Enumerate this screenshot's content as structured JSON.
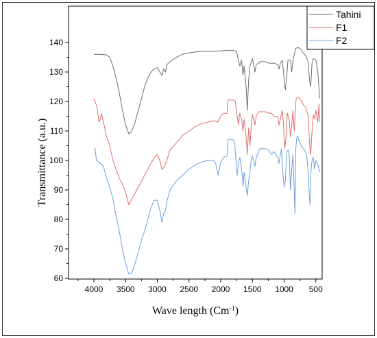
{
  "chart_data": {
    "type": "line",
    "xlabel": "Wave length (Cm",
    "xlabel_superscript": "-1",
    "xlabel_suffix": ")",
    "ylabel": "Transmittance (a.u.)",
    "xlim": [
      4400,
      400
    ],
    "ylim": [
      60,
      140
    ],
    "x_ticks": [
      4000,
      3500,
      3000,
      2500,
      2000,
      1500,
      1000,
      500
    ],
    "y_ticks": [
      60,
      70,
      80,
      90,
      100,
      110,
      120,
      130,
      140
    ],
    "legend_placement": "top-right",
    "grid": false,
    "series": [
      {
        "name": "Tahini",
        "color": "#6b6b6b",
        "points": [
          [
            4000,
            136
          ],
          [
            3900,
            136
          ],
          [
            3800,
            135.8
          ],
          [
            3750,
            135
          ],
          [
            3700,
            132
          ],
          [
            3650,
            128
          ],
          [
            3600,
            123
          ],
          [
            3550,
            117
          ],
          [
            3500,
            112
          ],
          [
            3450,
            109
          ],
          [
            3400,
            110
          ],
          [
            3350,
            113
          ],
          [
            3300,
            117
          ],
          [
            3250,
            121
          ],
          [
            3200,
            125
          ],
          [
            3150,
            128
          ],
          [
            3100,
            130
          ],
          [
            3050,
            131
          ],
          [
            3000,
            131.5
          ],
          [
            2960,
            130
          ],
          [
            2925,
            128.8
          ],
          [
            2900,
            131
          ],
          [
            2870,
            130
          ],
          [
            2850,
            132.5
          ],
          [
            2800,
            133.5
          ],
          [
            2700,
            135
          ],
          [
            2600,
            136
          ],
          [
            2500,
            136.5
          ],
          [
            2400,
            136.8
          ],
          [
            2300,
            137
          ],
          [
            2200,
            137
          ],
          [
            2100,
            137
          ],
          [
            2000,
            137.2
          ],
          [
            1900,
            137.3
          ],
          [
            1800,
            137.3
          ],
          [
            1750,
            137
          ],
          [
            1720,
            134
          ],
          [
            1700,
            132
          ],
          [
            1670,
            134
          ],
          [
            1650,
            129
          ],
          [
            1630,
            132
          ],
          [
            1600,
            125
          ],
          [
            1580,
            117
          ],
          [
            1560,
            127
          ],
          [
            1540,
            132
          ],
          [
            1500,
            134.5
          ],
          [
            1460,
            130
          ],
          [
            1440,
            132.5
          ],
          [
            1400,
            133
          ],
          [
            1377,
            133.5
          ],
          [
            1300,
            133.5
          ],
          [
            1240,
            133
          ],
          [
            1200,
            133
          ],
          [
            1160,
            133
          ],
          [
            1100,
            132.5
          ],
          [
            1080,
            131
          ],
          [
            1060,
            133
          ],
          [
            1030,
            134
          ],
          [
            1000,
            128
          ],
          [
            980,
            124
          ],
          [
            960,
            128
          ],
          [
            940,
            134
          ],
          [
            900,
            134
          ],
          [
            880,
            130
          ],
          [
            860,
            134
          ],
          [
            840,
            136
          ],
          [
            820,
            138
          ],
          [
            780,
            138.3
          ],
          [
            740,
            137.8
          ],
          [
            700,
            136.5
          ],
          [
            660,
            135.5
          ],
          [
            620,
            133.5
          ],
          [
            600,
            127
          ],
          [
            580,
            125
          ],
          [
            560,
            133
          ],
          [
            540,
            134.5
          ],
          [
            500,
            134
          ],
          [
            480,
            132
          ],
          [
            460,
            128
          ],
          [
            440,
            121
          ]
        ]
      },
      {
        "name": "F1",
        "color": "#e06c6c",
        "points": [
          [
            4000,
            121
          ],
          [
            3980,
            120
          ],
          [
            3950,
            118
          ],
          [
            3920,
            113
          ],
          [
            3900,
            114
          ],
          [
            3880,
            116
          ],
          [
            3850,
            113
          ],
          [
            3800,
            108
          ],
          [
            3750,
            105
          ],
          [
            3700,
            100
          ],
          [
            3650,
            97
          ],
          [
            3600,
            94
          ],
          [
            3550,
            92
          ],
          [
            3500,
            89
          ],
          [
            3450,
            85
          ],
          [
            3400,
            87
          ],
          [
            3300,
            91
          ],
          [
            3200,
            95
          ],
          [
            3100,
            99
          ],
          [
            3050,
            101
          ],
          [
            3000,
            102
          ],
          [
            2960,
            100
          ],
          [
            2925,
            97
          ],
          [
            2900,
            97.5
          ],
          [
            2850,
            100
          ],
          [
            2800,
            103.5
          ],
          [
            2700,
            106
          ],
          [
            2600,
            108.5
          ],
          [
            2500,
            110
          ],
          [
            2400,
            111.5
          ],
          [
            2300,
            112.5
          ],
          [
            2200,
            113
          ],
          [
            2100,
            113.5
          ],
          [
            2050,
            113
          ],
          [
            2000,
            115
          ],
          [
            1950,
            116
          ],
          [
            1900,
            116
          ],
          [
            1890,
            120.5
          ],
          [
            1800,
            120.5
          ],
          [
            1770,
            120
          ],
          [
            1740,
            115
          ],
          [
            1720,
            112
          ],
          [
            1700,
            116
          ],
          [
            1670,
            114
          ],
          [
            1650,
            110
          ],
          [
            1630,
            114
          ],
          [
            1600,
            108
          ],
          [
            1580,
            102
          ],
          [
            1560,
            111
          ],
          [
            1540,
            105
          ],
          [
            1520,
            111
          ],
          [
            1500,
            115.5
          ],
          [
            1460,
            112
          ],
          [
            1440,
            115
          ],
          [
            1400,
            116.5
          ],
          [
            1300,
            116.5
          ],
          [
            1240,
            116
          ],
          [
            1200,
            116
          ],
          [
            1160,
            115
          ],
          [
            1100,
            115
          ],
          [
            1080,
            112
          ],
          [
            1060,
            114
          ],
          [
            1030,
            117
          ],
          [
            1010,
            112
          ],
          [
            990,
            104
          ],
          [
            970,
            108
          ],
          [
            950,
            116
          ],
          [
            920,
            114
          ],
          [
            900,
            108
          ],
          [
            880,
            112
          ],
          [
            860,
            117
          ],
          [
            840,
            110
          ],
          [
            820,
            118
          ],
          [
            810,
            121
          ],
          [
            780,
            121.5
          ],
          [
            760,
            121
          ],
          [
            720,
            120
          ],
          [
            700,
            119
          ],
          [
            660,
            118
          ],
          [
            620,
            115
          ],
          [
            600,
            106
          ],
          [
            580,
            102
          ],
          [
            560,
            110
          ],
          [
            540,
            115.5
          ],
          [
            520,
            114
          ],
          [
            500,
            117
          ],
          [
            470,
            113
          ],
          [
            450,
            119
          ],
          [
            440,
            113
          ]
        ]
      },
      {
        "name": "F2",
        "color": "#6b9fde",
        "points": [
          [
            4000,
            104
          ],
          [
            3980,
            104
          ],
          [
            3960,
            100
          ],
          [
            3900,
            99
          ],
          [
            3850,
            98
          ],
          [
            3800,
            94
          ],
          [
            3750,
            91
          ],
          [
            3700,
            87
          ],
          [
            3650,
            81
          ],
          [
            3600,
            76
          ],
          [
            3550,
            70
          ],
          [
            3500,
            65
          ],
          [
            3450,
            61.5
          ],
          [
            3400,
            62
          ],
          [
            3350,
            65
          ],
          [
            3300,
            69
          ],
          [
            3250,
            73
          ],
          [
            3200,
            76
          ],
          [
            3150,
            80
          ],
          [
            3100,
            84
          ],
          [
            3050,
            86.5
          ],
          [
            3000,
            86.5
          ],
          [
            2960,
            83
          ],
          [
            2930,
            79
          ],
          [
            2900,
            82
          ],
          [
            2870,
            83
          ],
          [
            2850,
            86
          ],
          [
            2800,
            90
          ],
          [
            2700,
            93
          ],
          [
            2600,
            95
          ],
          [
            2500,
            97
          ],
          [
            2400,
            98.5
          ],
          [
            2300,
            99.5
          ],
          [
            2200,
            100
          ],
          [
            2150,
            100
          ],
          [
            2100,
            99.8
          ],
          [
            2080,
            99
          ],
          [
            2060,
            97
          ],
          [
            2040,
            95
          ],
          [
            2000,
            99.5
          ],
          [
            1950,
            101
          ],
          [
            1900,
            101.5
          ],
          [
            1890,
            107
          ],
          [
            1800,
            107
          ],
          [
            1780,
            106
          ],
          [
            1760,
            100
          ],
          [
            1740,
            95
          ],
          [
            1720,
            99
          ],
          [
            1700,
            101
          ],
          [
            1680,
            99
          ],
          [
            1660,
            95
          ],
          [
            1650,
            91
          ],
          [
            1630,
            96
          ],
          [
            1600,
            91
          ],
          [
            1580,
            88
          ],
          [
            1560,
            93
          ],
          [
            1540,
            96
          ],
          [
            1520,
            100
          ],
          [
            1500,
            101.5
          ],
          [
            1460,
            98
          ],
          [
            1440,
            101
          ],
          [
            1400,
            103
          ],
          [
            1380,
            104
          ],
          [
            1300,
            104
          ],
          [
            1240,
            103.5
          ],
          [
            1200,
            102
          ],
          [
            1160,
            103
          ],
          [
            1100,
            101
          ],
          [
            1080,
            99
          ],
          [
            1060,
            102
          ],
          [
            1040,
            104
          ],
          [
            1020,
            96
          ],
          [
            1000,
            91
          ],
          [
            980,
            93
          ],
          [
            960,
            103
          ],
          [
            940,
            103.5
          ],
          [
            920,
            102
          ],
          [
            900,
            90
          ],
          [
            880,
            97
          ],
          [
            860,
            102
          ],
          [
            850,
            96
          ],
          [
            830,
            82
          ],
          [
            815,
            104
          ],
          [
            800,
            108
          ],
          [
            780,
            108
          ],
          [
            760,
            106
          ],
          [
            740,
            105.5
          ],
          [
            700,
            104
          ],
          [
            660,
            103
          ],
          [
            640,
            101
          ],
          [
            620,
            96
          ],
          [
            600,
            87
          ],
          [
            590,
            85
          ],
          [
            580,
            95
          ],
          [
            560,
            100
          ],
          [
            540,
            101
          ],
          [
            520,
            97
          ],
          [
            500,
            100
          ],
          [
            460,
            98
          ],
          [
            440,
            96
          ]
        ]
      }
    ]
  }
}
